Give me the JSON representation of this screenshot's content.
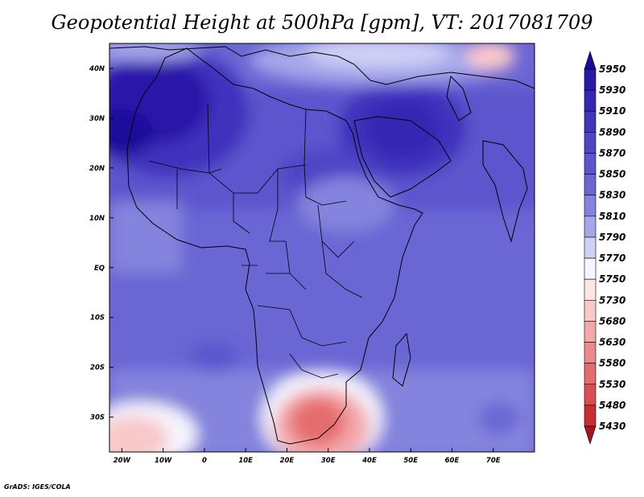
{
  "title": "Geopotential Height at 500hPa [gpm], VT: 2017081709",
  "credit": "GrADS: IGES/COLA",
  "map": {
    "variable": "Geopotential Height",
    "level": "500hPa",
    "units": "gpm",
    "valid_time": "2017081709",
    "lon_range": [
      -23,
      80
    ],
    "lat_range": [
      -37,
      45
    ],
    "lon_ticks": [
      {
        "value": -20,
        "label": "20W"
      },
      {
        "value": -10,
        "label": "10W"
      },
      {
        "value": 0,
        "label": "0"
      },
      {
        "value": 10,
        "label": "10E"
      },
      {
        "value": 20,
        "label": "20E"
      },
      {
        "value": 30,
        "label": "30E"
      },
      {
        "value": 40,
        "label": "40E"
      },
      {
        "value": 50,
        "label": "50E"
      },
      {
        "value": 60,
        "label": "60E"
      },
      {
        "value": 70,
        "label": "70E"
      }
    ],
    "lat_ticks": [
      {
        "value": 40,
        "label": "40N"
      },
      {
        "value": 30,
        "label": "30N"
      },
      {
        "value": 20,
        "label": "20N"
      },
      {
        "value": 10,
        "label": "10N"
      },
      {
        "value": 0,
        "label": "EQ"
      },
      {
        "value": -10,
        "label": "10S"
      },
      {
        "value": -20,
        "label": "20S"
      },
      {
        "value": -30,
        "label": "30S"
      }
    ]
  },
  "colorbar": {
    "labels": [
      "5950",
      "5930",
      "5910",
      "5890",
      "5870",
      "5850",
      "5830",
      "5810",
      "5790",
      "5770",
      "5750",
      "5730",
      "5680",
      "5630",
      "5580",
      "5530",
      "5480",
      "5430"
    ],
    "colors": [
      "#1d0c9a",
      "#2a19a8",
      "#3526b3",
      "#4133bd",
      "#4f44c6",
      "#5c55cd",
      "#6a66d4",
      "#8483dd",
      "#a6a6ea",
      "#cfd0f6",
      "#f5f5ff",
      "#fde6e6",
      "#f9c8c9",
      "#f3a9aa",
      "#ec8a8b",
      "#e56c6e",
      "#dc4d51",
      "#c62e33",
      "#a8141c"
    ]
  }
}
